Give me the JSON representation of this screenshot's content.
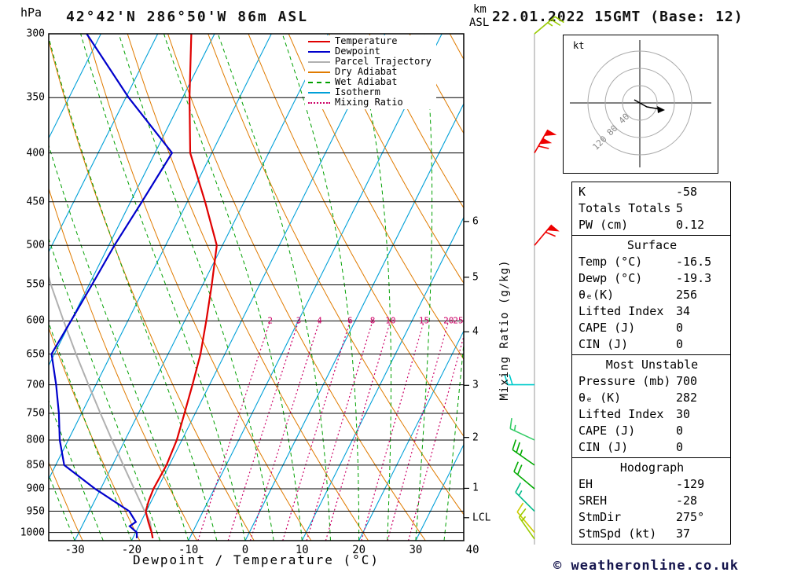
{
  "meta": {
    "station_title": "42°42'N 286°50'W 86m ASL",
    "datetime_title": "22.01.2022 15GMT (Base: 12)",
    "copyright": "© weatheronline.co.uk"
  },
  "axes": {
    "pressure_unit": "hPa",
    "height_unit_km": "km",
    "height_unit_asl": "ASL",
    "temp_axis_label": "Dewpoint / Temperature (°C)",
    "mixing_axis_label": "Mixing Ratio (g/kg)",
    "pressure_ticks": [
      300,
      350,
      400,
      450,
      500,
      550,
      600,
      650,
      700,
      750,
      800,
      850,
      900,
      950,
      1000
    ],
    "temp_ticks": [
      -30,
      -20,
      -10,
      0,
      10,
      20,
      30,
      40
    ],
    "km_ticks": [
      {
        "label": "1",
        "p": 899
      },
      {
        "label": "2",
        "p": 795
      },
      {
        "label": "3",
        "p": 701
      },
      {
        "label": "4",
        "p": 616
      },
      {
        "label": "5",
        "p": 540
      },
      {
        "label": "6",
        "p": 472
      }
    ],
    "lcl_label": "LCL",
    "lcl_pressure": 965
  },
  "legend": [
    {
      "label": "Temperature",
      "color": "#e00000",
      "dash": "solid"
    },
    {
      "label": "Dewpoint",
      "color": "#0000cc",
      "dash": "solid"
    },
    {
      "label": "Parcel Trajectory",
      "color": "#b0b0b0",
      "dash": "solid"
    },
    {
      "label": "Dry Adiabat",
      "color": "#e07b00",
      "dash": "solid"
    },
    {
      "label": "Wet Adiabat",
      "color": "#00a000",
      "dash": "dashed"
    },
    {
      "label": "Isotherm",
      "color": "#00a0d8",
      "dash": "solid"
    },
    {
      "label": "Mixing Ratio",
      "color": "#cc0066",
      "dash": "dotted"
    }
  ],
  "hodograph": {
    "unit_label": "kt",
    "rings_kt": [
      40,
      80,
      120
    ],
    "ring_labels": [
      "40",
      "80",
      "120"
    ]
  },
  "panels": [
    {
      "name": "indices",
      "rows": [
        [
          "K",
          "-58"
        ],
        [
          "Totals Totals",
          "5"
        ],
        [
          "PW (cm)",
          "0.12"
        ]
      ]
    },
    {
      "name": "surface",
      "title": "Surface",
      "rows": [
        [
          "Temp (°C)",
          "-16.5"
        ],
        [
          "Dewp (°C)",
          "-19.3"
        ],
        [
          "θₑ(K)",
          "256"
        ],
        [
          "Lifted Index",
          "34"
        ],
        [
          "CAPE (J)",
          "0"
        ],
        [
          "CIN (J)",
          "0"
        ]
      ]
    },
    {
      "name": "most-unstable",
      "title": "Most Unstable",
      "rows": [
        [
          "Pressure (mb)",
          "700"
        ],
        [
          "θₑ (K)",
          "282"
        ],
        [
          "Lifted Index",
          "30"
        ],
        [
          "CAPE (J)",
          "0"
        ],
        [
          "CIN (J)",
          "0"
        ]
      ]
    },
    {
      "name": "hodograph",
      "title": "Hodograph",
      "rows": [
        [
          "EH",
          "-129"
        ],
        [
          "SREH",
          "-28"
        ],
        [
          "StmDir",
          "275°"
        ],
        [
          "StmSpd (kt)",
          "37"
        ]
      ]
    }
  ],
  "chart_data": {
    "type": "skewt-log-p",
    "pressure_range": [
      300,
      1020
    ],
    "styles": {
      "temperature": "#e00000",
      "dewpoint": "#0000cc",
      "parcel": "#b0b0b0",
      "dry_adiabat": "#e07b00",
      "wet_adiabat": "#00a000",
      "isotherm": "#00a0d8",
      "mixing_ratio": "#cc0066"
    },
    "isotherms": {
      "start": -120,
      "end": 40,
      "step": 10
    },
    "dry_adiabats": {
      "start": -30,
      "end": 100,
      "step": 10
    },
    "wet_adiabats": {
      "start": -40,
      "end": 35,
      "step": 5
    },
    "mixing_ratio_lines": [
      2,
      3,
      4,
      6,
      8,
      10,
      15,
      20,
      25
    ],
    "temperature_profile": [
      [
        1014,
        -16.5
      ],
      [
        1000,
        -17.2
      ],
      [
        975,
        -18.7
      ],
      [
        950,
        -20.1
      ],
      [
        925,
        -20.5
      ],
      [
        900,
        -20.7
      ],
      [
        850,
        -20.5
      ],
      [
        800,
        -20.9
      ],
      [
        750,
        -21.9
      ],
      [
        700,
        -23.0
      ],
      [
        650,
        -24.3
      ],
      [
        600,
        -26.2
      ],
      [
        550,
        -28.4
      ],
      [
        500,
        -31.0
      ],
      [
        450,
        -36.9
      ],
      [
        400,
        -43.8
      ],
      [
        350,
        -48.8
      ],
      [
        300,
        -54.1
      ]
    ],
    "dewpoint_profile": [
      [
        1014,
        -19.3
      ],
      [
        1000,
        -19.8
      ],
      [
        985,
        -21.6
      ],
      [
        975,
        -20.9
      ],
      [
        950,
        -23.0
      ],
      [
        900,
        -31.0
      ],
      [
        850,
        -38.5
      ],
      [
        800,
        -41.5
      ],
      [
        750,
        -44.0
      ],
      [
        700,
        -47.0
      ],
      [
        650,
        -50.5
      ],
      [
        600,
        -50.0
      ],
      [
        550,
        -49.5
      ],
      [
        500,
        -49.0
      ],
      [
        450,
        -48.0
      ],
      [
        400,
        -47.0
      ],
      [
        350,
        -59.5
      ],
      [
        300,
        -72.5
      ]
    ],
    "parcel_profile": [
      [
        1014,
        -16.5
      ],
      [
        975,
        -18.4
      ],
      [
        950,
        -20.3
      ],
      [
        900,
        -24.1
      ],
      [
        850,
        -28.1
      ],
      [
        800,
        -32.3
      ],
      [
        750,
        -36.7
      ],
      [
        700,
        -41.3
      ],
      [
        650,
        -46.2
      ],
      [
        600,
        -51.3
      ],
      [
        550,
        -56.7
      ],
      [
        510,
        -61.0
      ]
    ],
    "wind_barbs": [
      {
        "p": 300,
        "color": "#99cc00",
        "dir_deg": 50,
        "speed_kt": 25
      },
      {
        "p": 400,
        "color": "#ee0000",
        "dir_deg": 30,
        "speed_kt": 110
      },
      {
        "p": 500,
        "color": "#ee0000",
        "dir_deg": 40,
        "speed_kt": 60
      },
      {
        "p": 700,
        "color": "#00cccc",
        "dir_deg": 270,
        "speed_kt": 20
      },
      {
        "p": 800,
        "color": "#33cc66",
        "dir_deg": 295,
        "speed_kt": 15
      },
      {
        "p": 850,
        "color": "#00aa00",
        "dir_deg": 305,
        "speed_kt": 25
      },
      {
        "p": 900,
        "color": "#00aa00",
        "dir_deg": 310,
        "speed_kt": 20
      },
      {
        "p": 950,
        "color": "#00bb88",
        "dir_deg": 315,
        "speed_kt": 15
      },
      {
        "p": 1000,
        "color": "#cccc00",
        "dir_deg": 320,
        "speed_kt": 10
      },
      {
        "p": 1016,
        "color": "#99cc00",
        "dir_deg": 325,
        "speed_kt": 15
      }
    ]
  }
}
